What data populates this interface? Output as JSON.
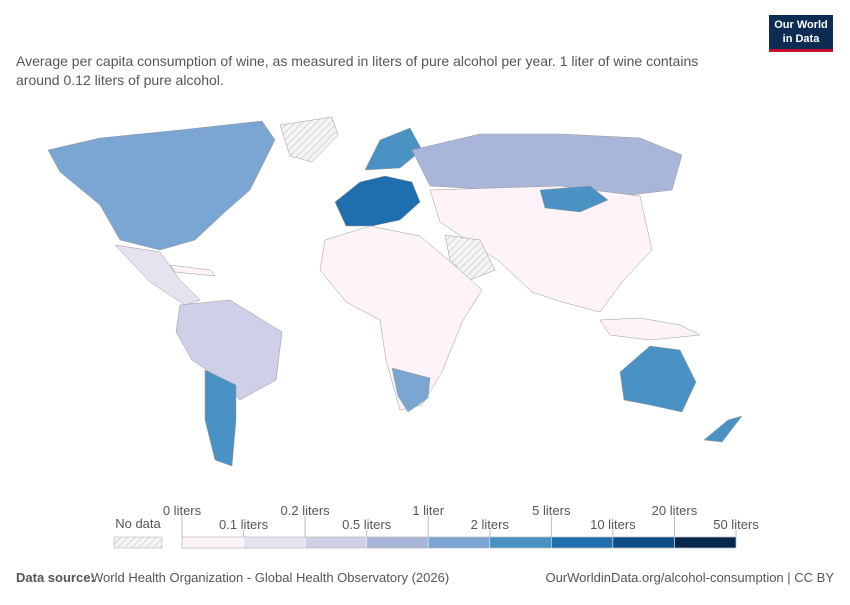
{
  "logo": [
    "Our World",
    "in Data"
  ],
  "subtitle": [
    "Average per capita consumption of wine, as measured in liters of pure alcohol per year. 1 liter of wine contains",
    "around 0.12 liters of pure alcohol."
  ],
  "legend": {
    "no_data": "No data",
    "top_labels": [
      "0 liters",
      "0.2 liters",
      "1 liter",
      "5 liters",
      "20 liters"
    ],
    "bottom_labels": [
      "0.1 liters",
      "0.5 liters",
      "2 liters",
      "10 liters",
      "50 liters"
    ],
    "colors": [
      "#fdf3f8",
      "#e7e2ef",
      "#cdd0e6",
      "#a9b6d9",
      "#7ba5d2",
      "#4a91c4",
      "#1f6fae",
      "#0d4d86",
      "#06284e"
    ]
  },
  "footer": {
    "source_label": "Data source:",
    "source": "World Health Organization - Global Health Observatory (2026)",
    "url": "OurWorldinData.org/alcohol-consumption | CC BY"
  }
}
